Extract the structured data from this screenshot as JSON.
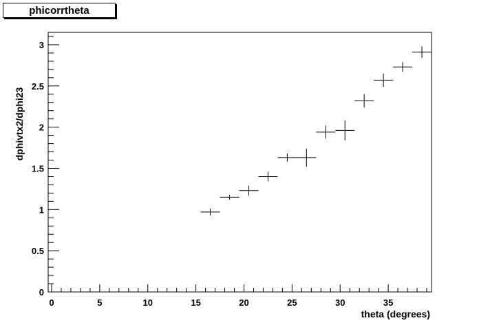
{
  "chart_data": {
    "type": "scatter",
    "title": "phicorrtheta",
    "xlabel": "theta (degrees)",
    "ylabel": "dphivtx2/dphi23",
    "xlim": [
      0,
      40
    ],
    "ylim": [
      0,
      3.15
    ],
    "x_ticks": [
      "0",
      "5",
      "10",
      "15",
      "20",
      "25",
      "30",
      "35"
    ],
    "y_ticks": [
      "0",
      "0.5",
      "1",
      "1.5",
      "2",
      "2.5",
      "3"
    ],
    "grid": false,
    "legend": "none",
    "series": [
      {
        "points": [
          {
            "x": 16.5,
            "y": 0.97,
            "xerr": 1.0,
            "yerr": 0.04
          },
          {
            "x": 18.5,
            "y": 1.15,
            "xerr": 1.0,
            "yerr": 0.03
          },
          {
            "x": 20.5,
            "y": 1.23,
            "xerr": 1.0,
            "yerr": 0.06
          },
          {
            "x": 22.5,
            "y": 1.4,
            "xerr": 1.0,
            "yerr": 0.06
          },
          {
            "x": 24.5,
            "y": 1.63,
            "xerr": 1.0,
            "yerr": 0.05
          },
          {
            "x": 26.5,
            "y": 1.63,
            "xerr": 1.0,
            "yerr": 0.11
          },
          {
            "x": 28.5,
            "y": 1.94,
            "xerr": 1.0,
            "yerr": 0.08
          },
          {
            "x": 30.5,
            "y": 1.96,
            "xerr": 1.0,
            "yerr": 0.12
          },
          {
            "x": 32.5,
            "y": 2.32,
            "xerr": 1.0,
            "yerr": 0.08
          },
          {
            "x": 34.5,
            "y": 2.57,
            "xerr": 1.0,
            "yerr": 0.08
          },
          {
            "x": 36.5,
            "y": 2.73,
            "xerr": 1.0,
            "yerr": 0.06
          },
          {
            "x": 38.5,
            "y": 2.91,
            "xerr": 1.0,
            "yerr": 0.07
          }
        ]
      }
    ]
  }
}
